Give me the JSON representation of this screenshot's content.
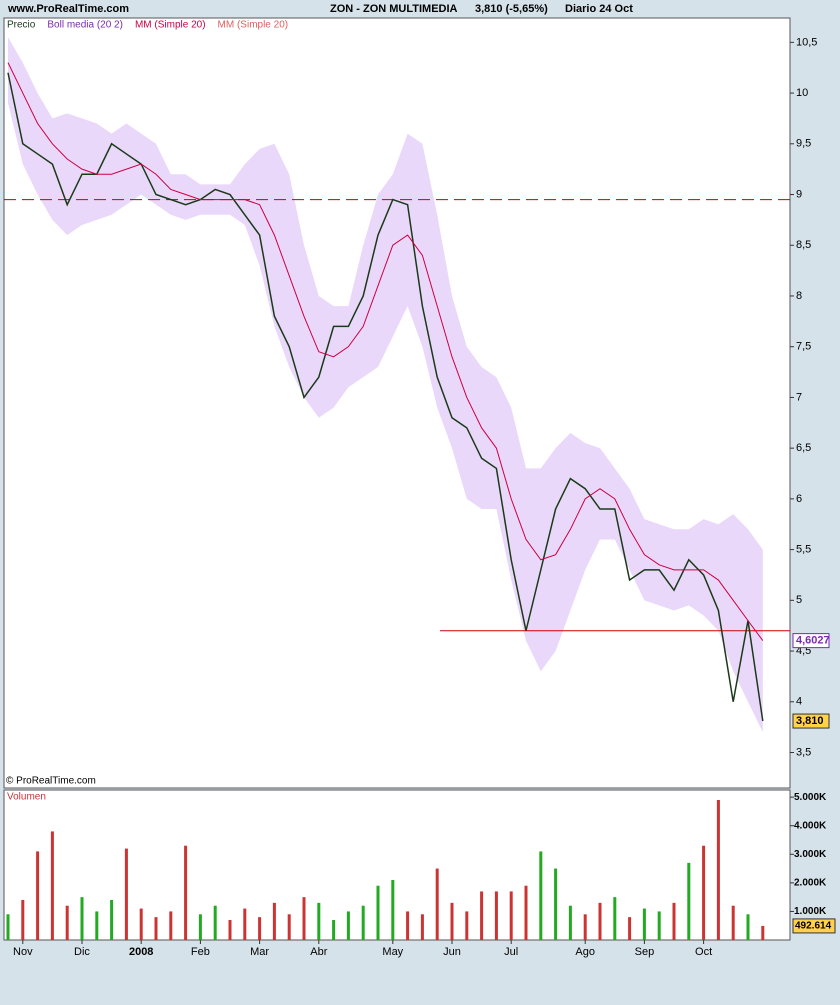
{
  "header": {
    "site": "www.ProRealTime.com",
    "instrument": "ZON - ZON MULTIMEDIA",
    "quote": "3,810 (-5,65%)",
    "period": "Diario  24 Oct",
    "copyright": "© ProRealTime.com"
  },
  "chart_data": [
    {
      "type": "line",
      "ylim": [
        3.15,
        10.74
      ],
      "yticks": [
        {
          "value": 3.5,
          "label": "3,5"
        },
        4,
        {
          "value": 4.5,
          "label": "4,5"
        },
        5,
        {
          "value": 5.5,
          "label": "5,5"
        },
        6,
        {
          "value": 6.5,
          "label": "6,5"
        },
        7,
        {
          "value": 7.5,
          "label": "7,5"
        },
        8,
        {
          "value": 8.5,
          "label": "8,5"
        },
        9,
        {
          "value": 9.5,
          "label": "9,5"
        },
        10,
        {
          "value": 10.5,
          "label": "10,5"
        }
      ],
      "series": [
        {
          "name": "Precio",
          "color": "#1a3a1a",
          "values": [
            10.2,
            9.5,
            9.4,
            9.3,
            8.9,
            9.2,
            9.2,
            9.5,
            9.4,
            9.3,
            9.0,
            8.95,
            8.9,
            8.95,
            9.05,
            9.0,
            8.8,
            8.6,
            7.8,
            7.5,
            7.0,
            7.2,
            7.7,
            7.7,
            8.0,
            8.6,
            8.95,
            8.9,
            7.9,
            7.2,
            6.8,
            6.7,
            6.4,
            6.3,
            5.4,
            4.7,
            5.3,
            5.9,
            6.2,
            6.1,
            5.9,
            5.9,
            5.2,
            5.3,
            5.3,
            5.1,
            5.4,
            5.25,
            4.9,
            4.0,
            4.8,
            3.81
          ],
          "value_labels": [
            null,
            null,
            null,
            null,
            null,
            null,
            null,
            null,
            null,
            null,
            null,
            null,
            null,
            null,
            null,
            null,
            null,
            null,
            null,
            null,
            null,
            null,
            null,
            null,
            null,
            null,
            null,
            null,
            null,
            null,
            null,
            null,
            null,
            null,
            null,
            null,
            null,
            null,
            null,
            null,
            null,
            null,
            null,
            null,
            null,
            null,
            null,
            null,
            null,
            null,
            null,
            "3,810"
          ]
        },
        {
          "name": "MM (Simple 20)",
          "color": "#cc0044",
          "values": [
            10.3,
            10.0,
            9.7,
            9.5,
            9.35,
            9.25,
            9.2,
            9.2,
            9.25,
            9.3,
            9.2,
            9.05,
            9.0,
            8.95,
            8.95,
            8.95,
            8.95,
            8.9,
            8.6,
            8.2,
            7.8,
            7.45,
            7.4,
            7.5,
            7.7,
            8.1,
            8.5,
            8.6,
            8.4,
            7.9,
            7.4,
            7.0,
            6.7,
            6.5,
            6.0,
            5.6,
            5.4,
            5.45,
            5.7,
            6.0,
            6.1,
            6.0,
            5.7,
            5.45,
            5.35,
            5.3,
            5.3,
            5.3,
            5.2,
            5.0,
            4.8,
            4.6027
          ],
          "value_labels": [
            null,
            null,
            null,
            null,
            null,
            null,
            null,
            null,
            null,
            null,
            null,
            null,
            null,
            null,
            null,
            null,
            null,
            null,
            null,
            null,
            null,
            null,
            null,
            null,
            null,
            null,
            null,
            null,
            null,
            null,
            null,
            null,
            null,
            null,
            null,
            null,
            null,
            null,
            null,
            null,
            null,
            null,
            null,
            null,
            null,
            null,
            null,
            null,
            null,
            null,
            null,
            "4,6027"
          ]
        }
      ],
      "band": {
        "name": "Boll media (20 2)",
        "color": "#ead8fa",
        "legend_color": "#7a2ab0",
        "upper": [
          10.55,
          10.3,
          10.0,
          9.75,
          9.8,
          9.75,
          9.7,
          9.6,
          9.7,
          9.6,
          9.5,
          9.2,
          9.2,
          9.1,
          9.1,
          9.1,
          9.3,
          9.45,
          9.5,
          9.2,
          8.5,
          8.0,
          7.9,
          7.9,
          8.5,
          9.0,
          9.2,
          9.6,
          9.5,
          8.8,
          8.0,
          7.5,
          7.3,
          7.2,
          6.9,
          6.3,
          6.3,
          6.5,
          6.65,
          6.55,
          6.5,
          6.3,
          6.1,
          5.8,
          5.75,
          5.7,
          5.7,
          5.8,
          5.75,
          5.85,
          5.7,
          5.5
        ],
        "lower": [
          9.9,
          9.3,
          9.0,
          8.75,
          8.6,
          8.7,
          8.75,
          8.8,
          8.9,
          9.0,
          8.9,
          8.8,
          8.75,
          8.8,
          8.8,
          8.8,
          8.7,
          8.3,
          7.7,
          7.3,
          7.0,
          6.8,
          6.9,
          7.1,
          7.2,
          7.3,
          7.6,
          7.9,
          7.5,
          6.9,
          6.5,
          6.0,
          5.9,
          5.9,
          5.2,
          4.6,
          4.3,
          4.5,
          4.9,
          5.3,
          5.6,
          5.6,
          5.3,
          5.0,
          4.95,
          4.9,
          4.95,
          4.85,
          4.7,
          4.3,
          4.0,
          3.7
        ]
      },
      "legend_extra": {
        "name": "MM (Simple 20)",
        "color": "#e06060"
      },
      "hlines": [
        {
          "value": 8.95,
          "color": "#cc0000",
          "dashed": true
        },
        {
          "value": 4.7,
          "color": "#cc0000",
          "dashed": false
        }
      ]
    },
    {
      "type": "bar",
      "title": "Volumen",
      "ylim": [
        0,
        5250
      ],
      "yticks": [
        {
          "value": 1000,
          "label": "1.000K"
        },
        {
          "value": 2000,
          "label": "2.000K"
        },
        {
          "value": 3000,
          "label": "3.000K"
        },
        {
          "value": 4000,
          "label": "4.000K"
        },
        {
          "value": 5000,
          "label": "5.000K"
        }
      ],
      "categories": [
        null,
        "Nov",
        null,
        null,
        null,
        "Dic",
        null,
        null,
        null,
        "2008",
        null,
        null,
        null,
        "Feb",
        null,
        null,
        null,
        "Mar",
        null,
        null,
        null,
        "Abr",
        null,
        null,
        null,
        null,
        "May",
        null,
        null,
        null,
        "Jun",
        null,
        null,
        null,
        "Jul",
        null,
        null,
        null,
        null,
        "Ago",
        null,
        null,
        null,
        "Sep",
        null,
        null,
        null,
        "Oct",
        null,
        null,
        null,
        null
      ],
      "up_color": "#22aa22",
      "down_color": "#cc3333",
      "values": [
        900,
        1400,
        3100,
        3800,
        1200,
        1500,
        1000,
        1400,
        3200,
        1100,
        800,
        1000,
        3300,
        900,
        1200,
        700,
        1100,
        800,
        1300,
        900,
        1500,
        1300,
        700,
        1000,
        1200,
        1900,
        2100,
        1000,
        900,
        2500,
        1300,
        1000,
        1700,
        1700,
        1700,
        1900,
        3100,
        2500,
        1200,
        900,
        1300,
        1500,
        800,
        1100,
        1000,
        1300,
        2700,
        3300,
        4900,
        1200,
        900,
        492.614
      ],
      "value_labels": [
        null,
        null,
        null,
        null,
        null,
        null,
        null,
        null,
        null,
        null,
        null,
        null,
        null,
        null,
        null,
        null,
        null,
        null,
        null,
        null,
        null,
        null,
        null,
        null,
        null,
        null,
        null,
        null,
        null,
        null,
        null,
        null,
        null,
        null,
        null,
        null,
        null,
        null,
        null,
        null,
        null,
        null,
        null,
        null,
        null,
        null,
        null,
        null,
        null,
        null,
        null,
        "492.614"
      ]
    }
  ]
}
